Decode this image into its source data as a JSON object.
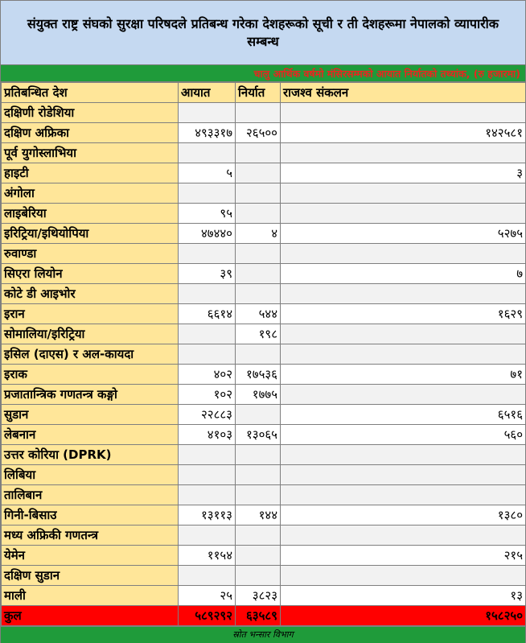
{
  "title": "संयुक्त राष्ट्र संघको सुरक्षा परिषदले प्रतिबन्ध गरेका देशहरूको सूची र ती देशहरूमा नेपालको व्यापारीक सम्बन्ध",
  "subtitle": "चालु आर्थिक वर्षमो मंसिरसम्मको आयात निर्यातको तथ्यांक, (रु हजारमा)",
  "headers": {
    "country": "प्रतिबन्धित देश",
    "import": "आयात",
    "export": "निर्यात",
    "revenue": "राजश्व संकलन"
  },
  "rows": [
    {
      "country": "दक्षिणी रोडेशिया",
      "import": "",
      "export": "",
      "revenue": ""
    },
    {
      "country": "दक्षिण अफ्रिका",
      "import": "४९३३१७",
      "export": "२६५००",
      "revenue": "१४२५८१"
    },
    {
      "country": "पूर्व युगोस्लाभिया",
      "import": "",
      "export": "",
      "revenue": ""
    },
    {
      "country": "हाइटी",
      "import": "५",
      "export": "",
      "revenue": "३"
    },
    {
      "country": "अंगोला",
      "import": "",
      "export": "",
      "revenue": ""
    },
    {
      "country": "लाइबेरिया",
      "import": "९५",
      "export": "",
      "revenue": ""
    },
    {
      "country": "इरिट्रिया/इथियोपिया",
      "import": "४७४४०",
      "export": "४",
      "revenue": "५२७५"
    },
    {
      "country": "रुवाण्डा",
      "import": "",
      "export": "",
      "revenue": ""
    },
    {
      "country": "सिएरा लियोन",
      "import": "३९",
      "export": "",
      "revenue": "७"
    },
    {
      "country": "कोटे डी आइभोर",
      "import": "",
      "export": "",
      "revenue": ""
    },
    {
      "country": "इरान",
      "import": "६६१४",
      "export": "५४४",
      "revenue": "१६२९"
    },
    {
      "country": "सोमालिया/इरिट्रिया",
      "import": "",
      "export": "१९८",
      "revenue": ""
    },
    {
      "country": "इसिल (दाएस) र अल-कायदा",
      "import": "",
      "export": "",
      "revenue": ""
    },
    {
      "country": "इराक",
      "import": "४०२",
      "export": "१७५३६",
      "revenue": "७१"
    },
    {
      "country": "प्रजातान्त्रिक गणतन्त्र कङ्गो",
      "import": "१०२",
      "export": "१७७५",
      "revenue": ""
    },
    {
      "country": "सुडान",
      "import": "२२८८३",
      "export": "",
      "revenue": "६५१६"
    },
    {
      "country": "लेबनान",
      "import": "४१०३",
      "export": "१३०६५",
      "revenue": "५६०"
    },
    {
      "country": "उत्तर कोरिया (DPRK)",
      "import": "",
      "export": "",
      "revenue": ""
    },
    {
      "country": "लिबिया",
      "import": "",
      "export": "",
      "revenue": ""
    },
    {
      "country": "तालिबान",
      "import": "",
      "export": "",
      "revenue": ""
    },
    {
      "country": "गिनी-बिसाउ",
      "import": "१३११३",
      "export": "१४४",
      "revenue": "१३८०"
    },
    {
      "country": "मध्य अफ्रिकी गणतन्त्र",
      "import": "",
      "export": "",
      "revenue": ""
    },
    {
      "country": "येमेन",
      "import": "११५४",
      "export": "",
      "revenue": "२१५"
    },
    {
      "country": "दक्षिण सुडान",
      "import": "",
      "export": "",
      "revenue": ""
    },
    {
      "country": "माली",
      "import": "२५",
      "export": "३८२३",
      "revenue": "१३"
    }
  ],
  "total": {
    "label": "कुल",
    "import": "५८९२९२",
    "export": "६३५८९",
    "revenue": "१५८२५०"
  },
  "source": "स्रोत भन्सार विभाग",
  "colors": {
    "title_bg": "#c5d9f1",
    "band_green": "#1f9b3a",
    "subtitle_text": "#e8261f",
    "name_cell_bg": "#ffe699",
    "total_bg": "#ff0000"
  }
}
